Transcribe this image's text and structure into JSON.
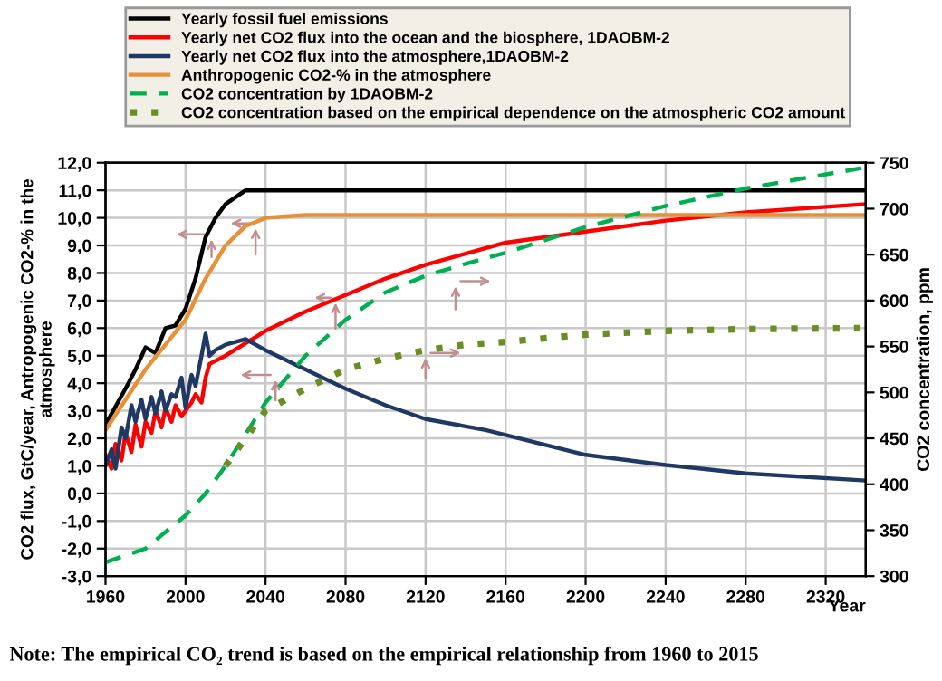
{
  "chart_data": {
    "type": "line",
    "xlabel": "Year",
    "ylabel": "CO2 flux, GtC/year, Antropogenic CO2-% in the\natmosphere",
    "y2label": "CO2 concentration, ppm",
    "xlim": [
      1960,
      2340
    ],
    "xticks": [
      1960,
      2000,
      2040,
      2080,
      2120,
      2160,
      2200,
      2240,
      2280,
      2320
    ],
    "ylim": [
      -3,
      12
    ],
    "yticks": [
      {
        "value": -3,
        "label": "-3,0"
      },
      {
        "value": -2,
        "label": "-2,0"
      },
      {
        "value": -1,
        "label": "-1,0"
      },
      {
        "value": 0,
        "label": "0,0"
      },
      {
        "value": 1,
        "label": "1,0"
      },
      {
        "value": 2,
        "label": "2,0"
      },
      {
        "value": 3,
        "label": "3,0"
      },
      {
        "value": 4,
        "label": "4,0"
      },
      {
        "value": 5,
        "label": "5,0"
      },
      {
        "value": 6,
        "label": "6,0"
      },
      {
        "value": 7,
        "label": "7,0"
      },
      {
        "value": 8,
        "label": "8,0"
      },
      {
        "value": 9,
        "label": "9,0"
      },
      {
        "value": 10,
        "label": "10,0"
      },
      {
        "value": 11,
        "label": "11,0"
      },
      {
        "value": 12,
        "label": "12,0"
      }
    ],
    "y2lim": [
      300,
      750
    ],
    "y2ticks": [
      300,
      350,
      400,
      450,
      500,
      550,
      600,
      650,
      700,
      750
    ],
    "grid": true,
    "legend": "top",
    "marker": "none",
    "series": [
      {
        "name": "Yearly fossil fuel emissions",
        "color": "#000000",
        "line_style": "solid",
        "x": [
          1960,
          1970,
          1975,
          1980,
          1985,
          1990,
          1995,
          2000,
          2005,
          2010,
          2015,
          2020,
          2030,
          2340
        ],
        "values": [
          2.5,
          3.8,
          4.5,
          5.3,
          5.1,
          6.0,
          6.1,
          6.7,
          7.8,
          9.3,
          10.0,
          10.5,
          11.0,
          11.0
        ]
      },
      {
        "name": "Yearly net CO2 flux into the ocean and the biosphere, 1DAOBM-2",
        "color": "#ff0000",
        "line_style": "solid",
        "x": [
          1960,
          1963,
          1965,
          1968,
          1970,
          1973,
          1975,
          1978,
          1980,
          1983,
          1985,
          1988,
          1990,
          1993,
          1995,
          1998,
          2000,
          2003,
          2005,
          2008,
          2010,
          2012,
          2020,
          2040,
          2060,
          2080,
          2100,
          2120,
          2140,
          2160,
          2200,
          2240,
          2280,
          2340
        ],
        "values": [
          1.4,
          0.9,
          1.8,
          1.2,
          2.2,
          1.5,
          2.5,
          1.7,
          2.6,
          2.2,
          3.0,
          2.4,
          3.1,
          2.6,
          3.2,
          2.8,
          3.0,
          3.3,
          3.6,
          3.3,
          4.2,
          4.7,
          5.0,
          5.9,
          6.6,
          7.2,
          7.8,
          8.3,
          8.7,
          9.1,
          9.5,
          9.9,
          10.2,
          10.5
        ]
      },
      {
        "name": "Yearly net CO2 flux into the atmosphere,1DAOBM-2",
        "color": "#1f3864",
        "line_style": "solid",
        "x": [
          1960,
          1963,
          1965,
          1968,
          1970,
          1973,
          1975,
          1978,
          1980,
          1983,
          1985,
          1988,
          1990,
          1993,
          1995,
          1998,
          2000,
          2003,
          2005,
          2008,
          2010,
          2012,
          2015,
          2020,
          2030,
          2040,
          2060,
          2080,
          2100,
          2120,
          2150,
          2200,
          2240,
          2280,
          2340
        ],
        "values": [
          1.0,
          1.6,
          0.9,
          2.4,
          2.0,
          3.2,
          2.6,
          3.4,
          2.7,
          3.5,
          2.9,
          3.7,
          3.0,
          3.6,
          3.5,
          4.2,
          3.1,
          4.3,
          3.9,
          5.0,
          5.8,
          5.0,
          5.2,
          5.4,
          5.6,
          5.2,
          4.5,
          3.8,
          3.2,
          2.7,
          2.3,
          1.4,
          1.03,
          0.73,
          0.47
        ]
      },
      {
        "name": "Anthropogenic CO2-% in the atmosphere",
        "color": "#e69138",
        "line_style": "solid",
        "x": [
          1960,
          1980,
          2000,
          2010,
          2020,
          2030,
          2040,
          2060,
          2340
        ],
        "values": [
          2.3,
          4.5,
          6.3,
          7.8,
          9.0,
          9.7,
          10.0,
          10.1,
          10.1
        ]
      },
      {
        "name": "CO2 concentration by 1DAOBM-2",
        "color": "#00b050",
        "line_style": "dashed",
        "axis": "y2",
        "x": [
          1960,
          1980,
          2000,
          2010,
          2020,
          2040,
          2060,
          2080,
          2100,
          2120,
          2140,
          2160,
          2200,
          2240,
          2280,
          2340
        ],
        "values": [
          315,
          330,
          366,
          390,
          420,
          489,
          540,
          579,
          609,
          627,
          640,
          652,
          680,
          703,
          722,
          745
        ]
      },
      {
        "name": "CO2 concentration based on the empirical dependence on the atmospheric CO2 amount",
        "color": "#6b8e23",
        "line_style": "dotted",
        "axis": "y2",
        "x": [
          2020,
          2040,
          2060,
          2080,
          2100,
          2120,
          2140,
          2160,
          2200,
          2240,
          2280,
          2340
        ],
        "values": [
          420,
          480,
          504,
          525,
          537,
          546,
          552,
          555,
          563,
          567,
          569,
          570
        ]
      }
    ],
    "annotations": [
      "Note: The empirical CO₂ trend is based on the empirical relationship from 1960 to 2015"
    ]
  }
}
